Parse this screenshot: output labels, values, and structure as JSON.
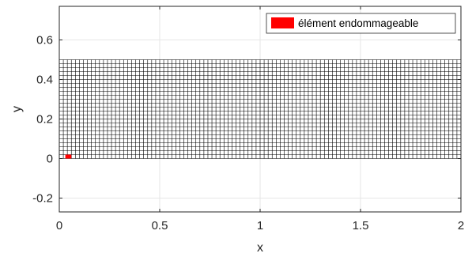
{
  "chart_data": {
    "type": "mesh",
    "title": "",
    "xlabel": "x",
    "ylabel": "y",
    "xlim": [
      0,
      2
    ],
    "ylim": [
      -0.27,
      0.77
    ],
    "xticks": [
      0,
      0.5,
      1,
      1.5,
      2
    ],
    "xtick_labels": [
      "0",
      "0.5",
      "1",
      "1.5",
      "2"
    ],
    "yticks": [
      -0.2,
      0,
      0.2,
      0.4,
      0.6
    ],
    "ytick_labels": [
      "-0.2",
      "0",
      "0.2",
      "0.4",
      "0.6"
    ],
    "grid": true,
    "mesh": {
      "x_range": [
        0,
        2
      ],
      "y_range": [
        0,
        0.5
      ],
      "nx": 100,
      "ny": 25,
      "edge_color": "#000000"
    },
    "highlighted_element": {
      "x_range": [
        0.03,
        0.06
      ],
      "y_range": [
        0,
        0.02
      ],
      "color": "#ff0000"
    },
    "legend": {
      "location": "top-right",
      "entries": [
        {
          "label": "élément endommageable",
          "color": "#ff0000"
        }
      ]
    }
  }
}
